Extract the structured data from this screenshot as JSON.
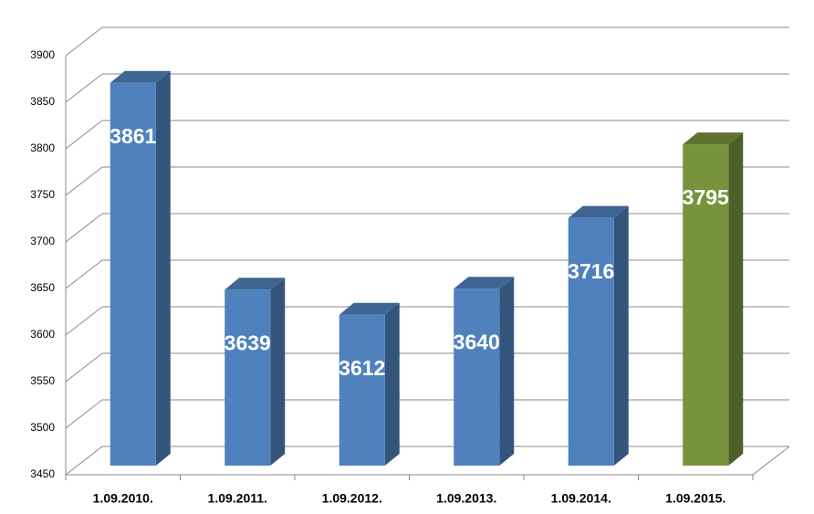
{
  "chart_data": {
    "type": "bar3d",
    "categories": [
      "1.09.2010.",
      "1.09.2011.",
      "1.09.2012.",
      "1.09.2013.",
      "1.09.2014.",
      "1.09.2015."
    ],
    "values": [
      3861,
      3639,
      3612,
      3640,
      3716,
      3795
    ],
    "colors": [
      "#4f81bd",
      "#4f81bd",
      "#4f81bd",
      "#4f81bd",
      "#4f81bd",
      "#77933c"
    ],
    "ylim": [
      3450,
      3900
    ],
    "yticks": [
      3450,
      3500,
      3550,
      3600,
      3650,
      3700,
      3750,
      3800,
      3850,
      3900
    ],
    "grid": true
  }
}
